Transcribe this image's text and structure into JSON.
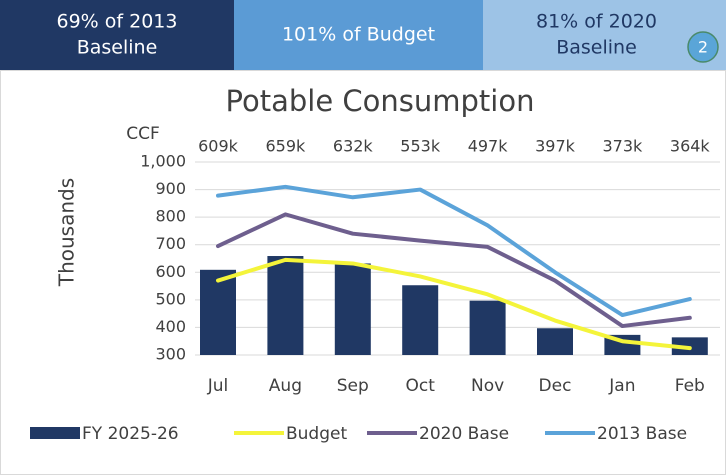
{
  "header": {
    "cards": [
      {
        "lines": [
          "69% of 2013",
          "Baseline"
        ],
        "color": "#203864",
        "text_color": "#ffffff"
      },
      {
        "lines": [
          "101% of Budget"
        ],
        "color": "#5b9bd5",
        "text_color": "#ffffff"
      },
      {
        "lines": [
          "81% of 2020",
          "Baseline"
        ],
        "color": "#9dc3e6",
        "text_color": "#203864"
      }
    ],
    "badge": "2"
  },
  "chart_data": {
    "type": "bar",
    "title": "Potable Consumption",
    "unit_label": "CCF",
    "y_label": "Thousands",
    "categories": [
      "Jul",
      "Aug",
      "Sep",
      "Oct",
      "Nov",
      "Dec",
      "Jan",
      "Feb"
    ],
    "series": [
      {
        "name": "FY 2025-26",
        "type": "bar",
        "color": "#203864",
        "values": [
          609,
          659,
          632,
          553,
          497,
          397,
          373,
          364
        ],
        "value_labels": [
          "609k",
          "659k",
          "632k",
          "553k",
          "497k",
          "397k",
          "373k",
          "364k"
        ]
      },
      {
        "name": "Budget",
        "type": "line",
        "color": "#f4f43a",
        "values": [
          570,
          645,
          632,
          585,
          520,
          425,
          350,
          325
        ]
      },
      {
        "name": "2020 Base",
        "type": "line",
        "color": "#6e5f8e",
        "values": [
          695,
          810,
          740,
          715,
          692,
          570,
          405,
          435
        ]
      },
      {
        "name": "2013 Base",
        "type": "line",
        "color": "#5ba3d9",
        "values": [
          878,
          910,
          872,
          900,
          770,
          600,
          445,
          503
        ]
      }
    ],
    "ylim": [
      300,
      1000
    ],
    "yticks": [
      300,
      400,
      500,
      600,
      700,
      800,
      900,
      {
        "value": 1000,
        "label": "1,000"
      }
    ],
    "grid": true,
    "legend": "bottom"
  }
}
